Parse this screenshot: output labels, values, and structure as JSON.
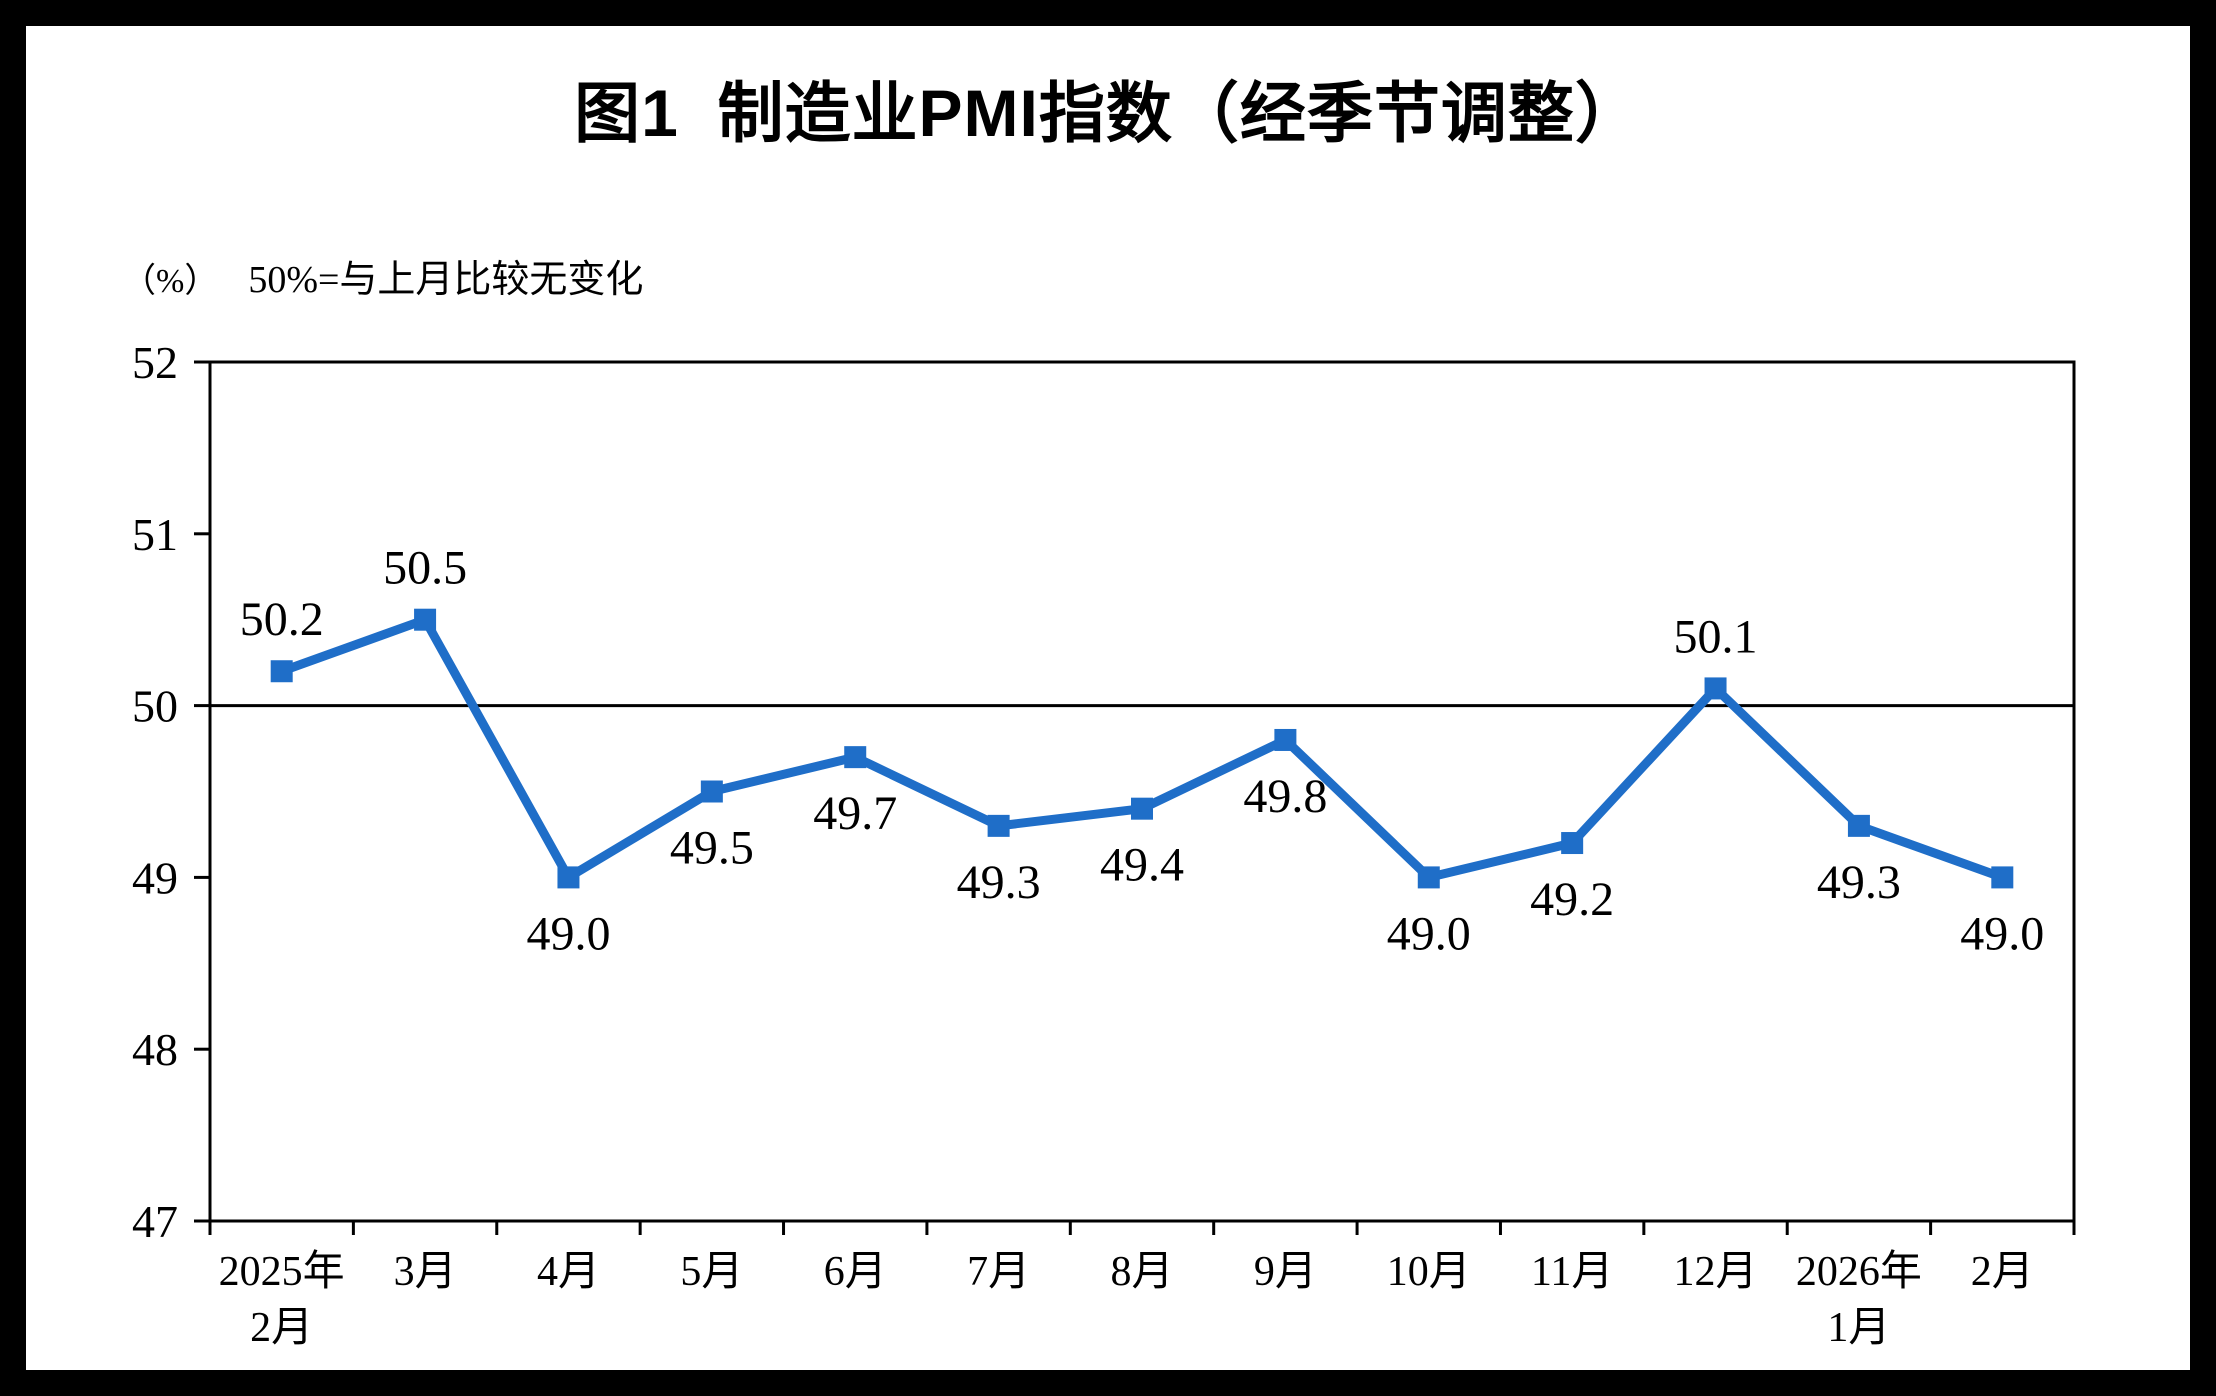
{
  "page": {
    "title": "图1  制造业PMI指数（经季节调整）",
    "unit_label": "（%）",
    "subtitle": "50%=与上月比较无变化"
  },
  "chart_data": {
    "type": "line",
    "title": "图1  制造业PMI指数（经季节调整）",
    "series_name": "制造业PMI",
    "categories": [
      [
        "2025年",
        "2月"
      ],
      [
        "3月"
      ],
      [
        "4月"
      ],
      [
        "5月"
      ],
      [
        "6月"
      ],
      [
        "7月"
      ],
      [
        "8月"
      ],
      [
        "9月"
      ],
      [
        "10月"
      ],
      [
        "11月"
      ],
      [
        "12月"
      ],
      [
        "2026年",
        "1月"
      ],
      [
        "2月"
      ]
    ],
    "values": [
      50.2,
      50.5,
      49.0,
      49.5,
      49.7,
      49.3,
      49.4,
      49.8,
      49.0,
      49.2,
      50.1,
      49.3,
      49.0
    ],
    "data_labels": [
      "50.2",
      "50.5",
      "49.0",
      "49.5",
      "49.7",
      "49.3",
      "49.4",
      "49.8",
      "49.0",
      "49.2",
      "50.1",
      "49.3",
      "49.0"
    ],
    "label_positions": [
      "above",
      "above",
      "below",
      "below",
      "below",
      "below",
      "below",
      "below",
      "below",
      "below",
      "above",
      "below",
      "below"
    ],
    "ylabel": "（%）",
    "xlabel": "",
    "ylim": [
      47,
      52
    ],
    "yticks": [
      47,
      48,
      49,
      50,
      51,
      52
    ],
    "reference_line": 50,
    "line_color": "#1f6ec8",
    "axis_color": "#000000",
    "marker": "square",
    "grid": false,
    "legend": "none"
  }
}
